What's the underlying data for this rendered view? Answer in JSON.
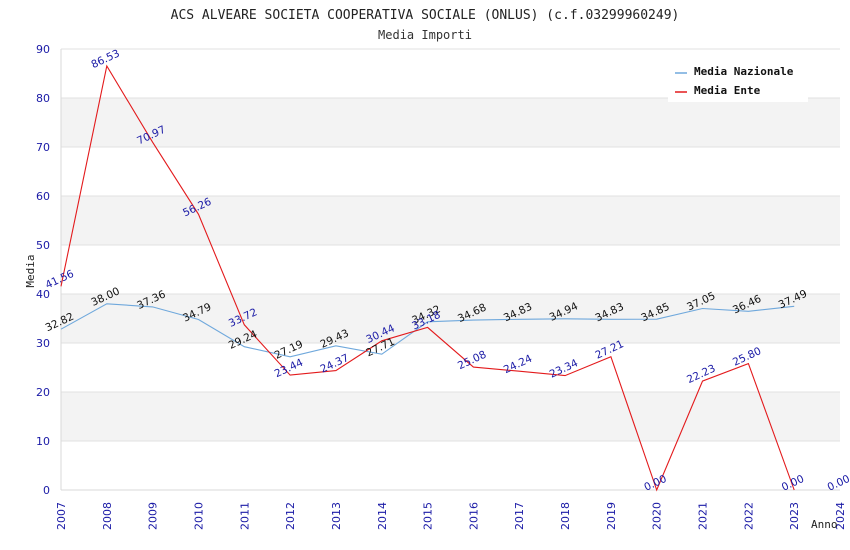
{
  "chart_data": {
    "type": "line",
    "title": "ACS ALVEARE SOCIETA COOPERATIVA SOCIALE (ONLUS) (c.f.03299960249)",
    "subtitle": "Media Importi",
    "xlabel": "Anno",
    "ylabel": "Media",
    "ylim": [
      0,
      90
    ],
    "yticks": [
      "0",
      "10",
      "20",
      "30",
      "40",
      "50",
      "60",
      "70",
      "80",
      "90"
    ],
    "categories": [
      "2007",
      "2008",
      "2009",
      "2010",
      "2011",
      "2012",
      "2013",
      "2014",
      "2015",
      "2016",
      "2017",
      "2018",
      "2019",
      "2020",
      "2021",
      "2022",
      "2023",
      "2024"
    ],
    "grid": "horizontal bands",
    "legend_position": "top-right",
    "series": [
      {
        "name": "Media Nazionale",
        "color": "#6fa8dc",
        "label_color": "#111111",
        "values": [
          32.82,
          38.0,
          37.36,
          34.79,
          29.24,
          27.19,
          29.43,
          27.71,
          34.32,
          34.68,
          34.83,
          34.94,
          34.83,
          34.85,
          37.05,
          36.46,
          37.49,
          null
        ],
        "labels": [
          "32.82",
          "38.00",
          "37.36",
          "34.79",
          "29.24",
          "27.19",
          "29.43",
          "27.71",
          "34.32",
          "34.68",
          "34.83",
          "34.94",
          "34.83",
          "34.85",
          "37.05",
          "36.46",
          "37.49",
          ""
        ]
      },
      {
        "name": "Media Ente",
        "color": "#e31a1c",
        "label_color": "#1a1aa6",
        "values": [
          41.56,
          86.53,
          70.97,
          56.26,
          33.72,
          23.44,
          24.37,
          30.44,
          33.18,
          25.08,
          24.24,
          23.34,
          27.21,
          0.0,
          22.23,
          25.8,
          0.0,
          0.0
        ],
        "labels": [
          "41.56",
          "86.53",
          "70.97",
          "56.26",
          "33.72",
          "23.44",
          "24.37",
          "30.44",
          "33.18",
          "25.08",
          "24.24",
          "23.34",
          "27.21",
          "0.00",
          "22.23",
          "25.80",
          "0.00",
          "0.00"
        ],
        "line_points": 17
      }
    ]
  }
}
